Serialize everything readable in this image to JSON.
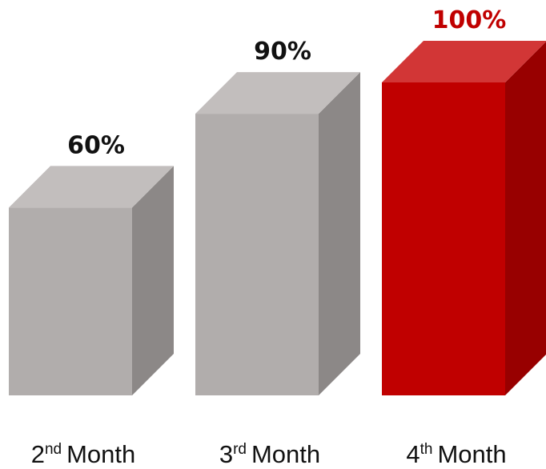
{
  "chart_data": {
    "type": "bar",
    "categories": [
      {
        "number": "2",
        "suffix": "nd",
        "word": "Month"
      },
      {
        "number": "3",
        "suffix": "rd",
        "word": "Month"
      },
      {
        "number": "4",
        "suffix": "th",
        "word": "Month"
      }
    ],
    "values": [
      60,
      90,
      100
    ],
    "value_labels": [
      "60%",
      "90%",
      "100%"
    ],
    "ylim": [
      0,
      100
    ],
    "grid": false,
    "legend": "none",
    "highlight_index": 2
  },
  "colors": {
    "bar_front": "#b1adac",
    "bar_top": "#c2bebd",
    "bar_side": "#8c8887",
    "highlight_front": "#c00000",
    "highlight_top": "#d23636",
    "highlight_side": "#980000",
    "label_text": "#111111",
    "highlight_label_text": "#c00000"
  }
}
